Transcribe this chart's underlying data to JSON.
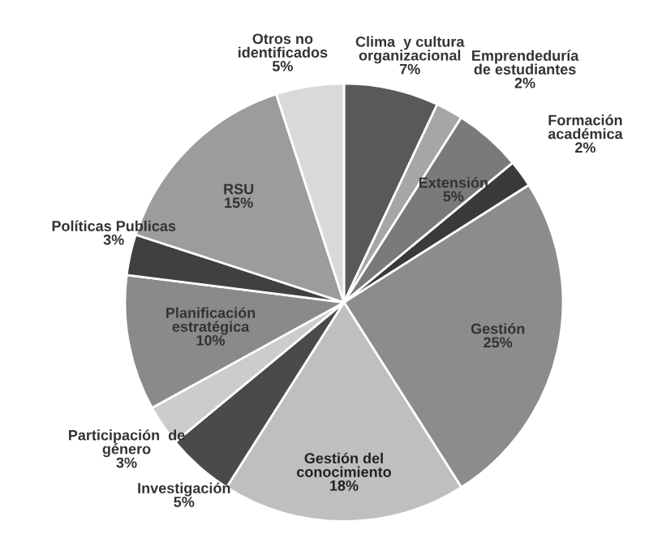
{
  "chart_data": {
    "type": "pie",
    "categories": [
      "Clima  y cultura\norganizacional",
      "Emprendeduría\nde estudiantes",
      "Extensión",
      "Formación\nacadémica",
      "Gestión",
      "Gestión del\nconocimiento",
      "Investigación",
      "Participación  de\ngénero",
      "Planificación\nestratégica",
      "Políticas Publicas",
      "RSU",
      "Otros no\nidentificados"
    ],
    "values": [
      7,
      2,
      5,
      2,
      25,
      18,
      5,
      3,
      10,
      3,
      15,
      5
    ],
    "value_labels": [
      "7%",
      "2%",
      "5%",
      "2%",
      "25%",
      "18%",
      "5%",
      "3%",
      "10%",
      "3%",
      "15%",
      "5%"
    ],
    "colors": [
      "#595959",
      "#a6a6a6",
      "#7a7a7a",
      "#3a3a3a",
      "#8c8c8c",
      "#bfbfbf",
      "#4a4a4a",
      "#cccccc",
      "#8a8a8a",
      "#404040",
      "#9c9c9c",
      "#d9d9d9"
    ]
  }
}
